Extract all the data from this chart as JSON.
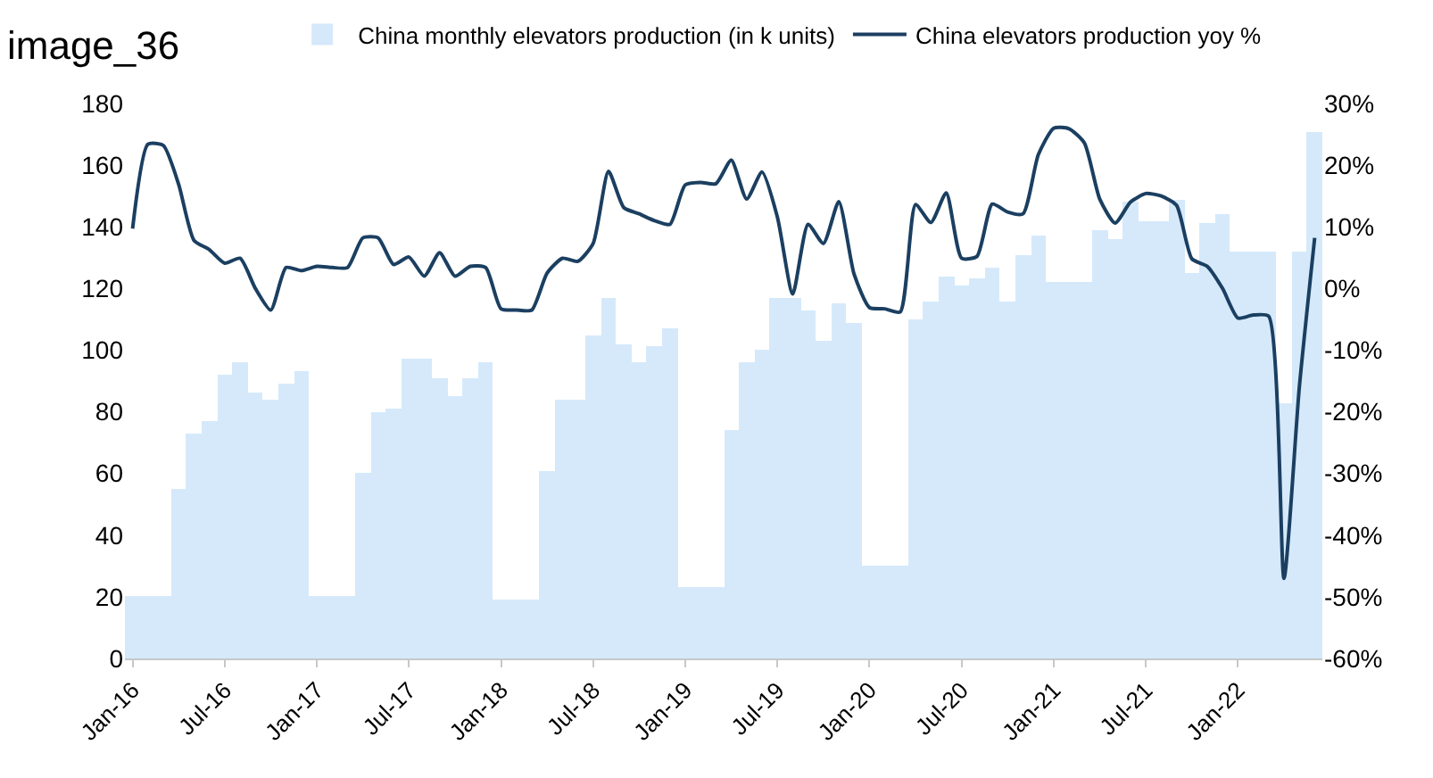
{
  "chart_data": {
    "type": "bar",
    "categories": [
      "Jan-16",
      null,
      null,
      null,
      null,
      null,
      "Jul-16",
      null,
      null,
      null,
      null,
      null,
      "Jan-17",
      null,
      null,
      null,
      null,
      null,
      "Jul-17",
      null,
      null,
      null,
      null,
      null,
      "Jan-18",
      null,
      null,
      null,
      null,
      null,
      "Jul-18",
      null,
      null,
      null,
      null,
      null,
      "Jan-19",
      null,
      null,
      null,
      null,
      null,
      "Jul-19",
      null,
      null,
      null,
      null,
      null,
      "Jan-20",
      null,
      null,
      null,
      null,
      null,
      "Jul-20",
      null,
      null,
      null,
      null,
      null,
      "Jan-21",
      null,
      null,
      null,
      null,
      null,
      "Jul-21",
      null,
      null,
      null,
      null,
      null,
      "Jan-22",
      null,
      null,
      null,
      null,
      null
    ],
    "series": [
      {
        "name": "China monthly elevators production (in k units)",
        "color": "#d5e9fb",
        "values": [
          20,
          20,
          20,
          55,
          73,
          77,
          92,
          96,
          86,
          84,
          89,
          93,
          20,
          20,
          20,
          60,
          80,
          81,
          97,
          97,
          91,
          85,
          91,
          96,
          19,
          19,
          19,
          61,
          84,
          84,
          105,
          117,
          102,
          96,
          101,
          107,
          23,
          23,
          23,
          74,
          96,
          100,
          117,
          117,
          113,
          103,
          115,
          109,
          30,
          30,
          30,
          110,
          116,
          124,
          121,
          123,
          127,
          116,
          131,
          137,
          122,
          122,
          122,
          139,
          136,
          148,
          142,
          142,
          149,
          125,
          141,
          144,
          132,
          132,
          132,
          83,
          132,
          171
        ]
      },
      {
        "name": "China elevators production yoy %",
        "type": "line",
        "axis": "y2",
        "color": "#1b3f61",
        "values": [
          9.7,
          23.4,
          23.2,
          16.9,
          7.8,
          6.3,
          4.1,
          4.9,
          0.0,
          -3.5,
          3.4,
          2.9,
          3.6,
          3.4,
          3.4,
          8.2,
          8.2,
          3.9,
          5.1,
          2.0,
          5.8,
          2.0,
          3.6,
          3.4,
          -3.3,
          -3.5,
          -3.5,
          2.5,
          4.9,
          4.4,
          7.3,
          19,
          13.1,
          12.1,
          11,
          10.4,
          16.8,
          17.2,
          17,
          20.8,
          14.5,
          18.9,
          11.6,
          -0.9,
          10.4,
          7.3,
          14.1,
          2.3,
          -3.1,
          -3.3,
          -3.8,
          13.6,
          10.7,
          15.5,
          4.9,
          5.2,
          13.7,
          12.4,
          12.1,
          21.7,
          26,
          25.9,
          23.6,
          14.5,
          10.6,
          14,
          15.4,
          15,
          13.5,
          4.8,
          3.6,
          0,
          -4.8,
          -4.3,
          -4.5,
          -47,
          -16,
          8.2
        ]
      }
    ],
    "ylim": [
      0,
      180
    ],
    "yticks": [
      0,
      20,
      40,
      60,
      80,
      100,
      120,
      140,
      160,
      180
    ],
    "y2lim": [
      -60,
      30
    ],
    "y2ticks": [
      {
        "value": -60,
        "label": "-60%"
      },
      {
        "value": -50,
        "label": "-50%"
      },
      {
        "value": -40,
        "label": "-40%"
      },
      {
        "value": -30,
        "label": "-30%"
      },
      {
        "value": -20,
        "label": "-20%"
      },
      {
        "value": -10,
        "label": "-10%"
      },
      {
        "value": 0,
        "label": "0%"
      },
      {
        "value": 10,
        "label": "10%"
      },
      {
        "value": 20,
        "label": "20%"
      },
      {
        "value": 30,
        "label": "30%"
      }
    ],
    "legend": "top",
    "marker": "none",
    "line_style": "solid",
    "annotations": [
      "image_36"
    ]
  }
}
